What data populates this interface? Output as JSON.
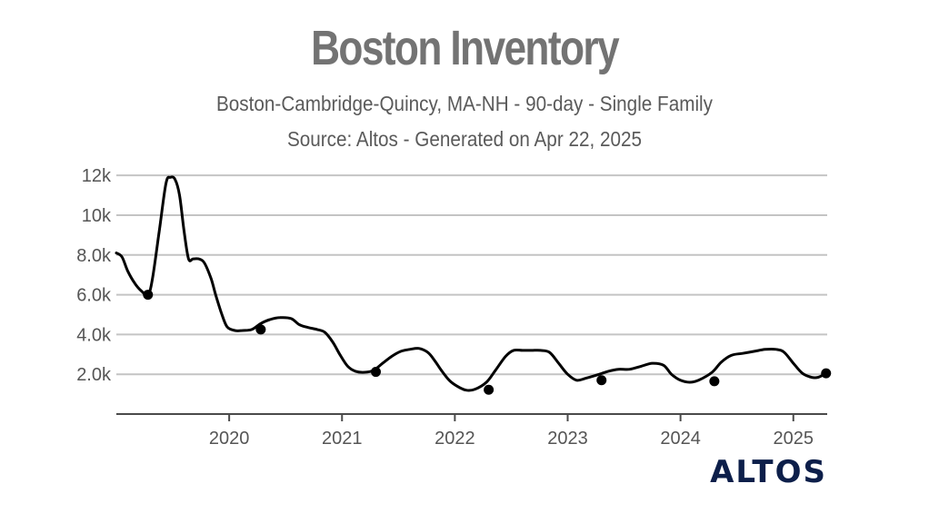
{
  "chart_data": {
    "type": "line",
    "title": "Boston Inventory",
    "subtitle": "Boston-Cambridge-Quincy, MA-NH - 90-day - Single Family",
    "source": "Source: Altos - Generated on Apr 22, 2025",
    "xlabel": "",
    "ylabel": "",
    "xlim": [
      2019.0,
      2025.3
    ],
    "ylim": [
      0,
      12600
    ],
    "x_ticks": [
      {
        "value": 2020,
        "label": "2020"
      },
      {
        "value": 2021,
        "label": "2021"
      },
      {
        "value": 2022,
        "label": "2022"
      },
      {
        "value": 2023,
        "label": "2023"
      },
      {
        "value": 2024,
        "label": "2024"
      },
      {
        "value": 2025,
        "label": "2025"
      }
    ],
    "y_ticks": [
      {
        "value": 2000,
        "label": "2.0k"
      },
      {
        "value": 4000,
        "label": "4.0k"
      },
      {
        "value": 6000,
        "label": "6.0k"
      },
      {
        "value": 8000,
        "label": "8.0k"
      },
      {
        "value": 10000,
        "label": "10k"
      },
      {
        "value": 12000,
        "label": "12k"
      }
    ],
    "grid": true,
    "legend": "none",
    "line_color": "#000000",
    "series": [
      {
        "x": [
          2019.0,
          2019.05,
          2019.1,
          2019.16,
          2019.22,
          2019.28,
          2019.32,
          2019.38,
          2019.44,
          2019.48,
          2019.52,
          2019.56,
          2019.6,
          2019.64,
          2019.68,
          2019.73,
          2019.78,
          2019.84,
          2019.88,
          2019.93,
          2019.98,
          2020.05,
          2020.12,
          2020.2,
          2020.28,
          2020.36,
          2020.45,
          2020.55,
          2020.62,
          2020.7,
          2020.78,
          2020.85,
          2020.92,
          2020.98,
          2021.05,
          2021.12,
          2021.2,
          2021.28,
          2021.36,
          2021.44,
          2021.52,
          2021.6,
          2021.68,
          2021.76,
          2021.82,
          2021.88,
          2021.95,
          2022.02,
          2022.1,
          2022.18,
          2022.28,
          2022.36,
          2022.45,
          2022.52,
          2022.6,
          2022.68,
          2022.76,
          2022.84,
          2022.92,
          2023.0,
          2023.08,
          2023.16,
          2023.28,
          2023.36,
          2023.45,
          2023.55,
          2023.65,
          2023.75,
          2023.85,
          2023.92,
          2024.0,
          2024.08,
          2024.16,
          2024.28,
          2024.36,
          2024.45,
          2024.55,
          2024.65,
          2024.75,
          2024.85,
          2024.92,
          2025.0,
          2025.08,
          2025.16,
          2025.22,
          2025.29
        ],
        "y": [
          8100,
          7900,
          7200,
          6600,
          6200,
          6000,
          6800,
          9200,
          11600,
          11900,
          11800,
          11000,
          9200,
          7800,
          7800,
          7800,
          7600,
          6800,
          6000,
          5100,
          4400,
          4200,
          4200,
          4250,
          4550,
          4750,
          4850,
          4800,
          4500,
          4350,
          4250,
          4100,
          3600,
          3000,
          2400,
          2150,
          2100,
          2200,
          2550,
          2900,
          3150,
          3250,
          3300,
          3100,
          2700,
          2200,
          1700,
          1400,
          1200,
          1250,
          1600,
          2200,
          2900,
          3200,
          3200,
          3200,
          3200,
          3100,
          2550,
          2000,
          1700,
          1800,
          2000,
          2150,
          2250,
          2250,
          2400,
          2550,
          2450,
          2000,
          1700,
          1600,
          1700,
          2100,
          2600,
          2950,
          3050,
          3150,
          3250,
          3250,
          3100,
          2550,
          2050,
          1850,
          1850,
          2050
        ]
      }
    ],
    "markers": {
      "x": [
        2019.28,
        2020.28,
        2021.3,
        2022.3,
        2023.3,
        2024.3,
        2025.29
      ],
      "y": [
        6000,
        4250,
        2120,
        1220,
        1700,
        1650,
        2050
      ]
    }
  },
  "brand": {
    "logo_text": "ALTOS",
    "logo_color": "#0d1f4a"
  }
}
